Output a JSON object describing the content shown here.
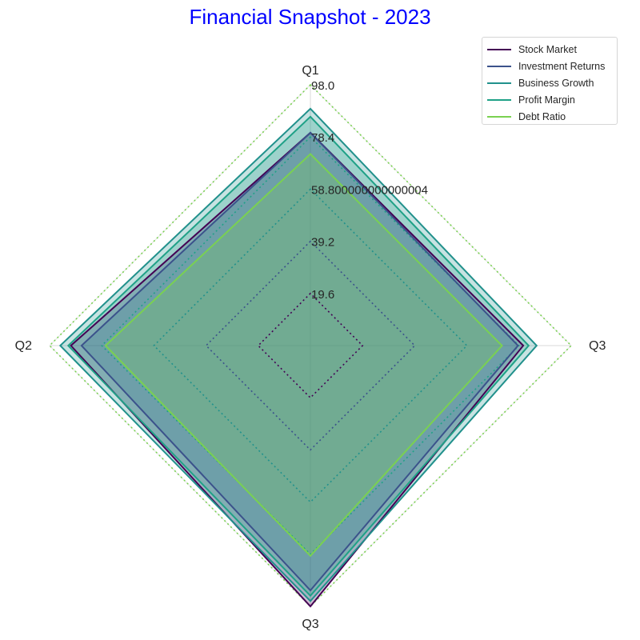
{
  "chart_data": {
    "type": "radar",
    "title": "Financial Snapshot - 2023",
    "title_color": "#0000ff",
    "axes": [
      "Q1",
      "Q2",
      "Q3",
      "Q3"
    ],
    "radial_ticks": [
      "19.6",
      "39.2",
      "58.800000000000004",
      "78.4",
      "98.0"
    ],
    "radial_tick_values": [
      19.6,
      39.2,
      58.8,
      78.4,
      98.0
    ],
    "rlim": [
      0,
      98
    ],
    "grid": true,
    "grid_style": "dotted",
    "legend_position": "top-right",
    "series": [
      {
        "name": "Stock Market",
        "values": [
          80,
          90,
          98,
          80
        ],
        "color": "#440154"
      },
      {
        "name": "Investment Returns",
        "values": [
          80,
          86,
          92,
          78
        ],
        "color": "#3b528b"
      },
      {
        "name": "Business Growth",
        "values": [
          89,
          94,
          96,
          85
        ],
        "color": "#21918c"
      },
      {
        "name": "Profit Margin",
        "values": [
          86,
          91,
          94,
          82
        ],
        "color": "#1fa187"
      },
      {
        "name": "Debt Ratio",
        "values": [
          72,
          77,
          79,
          72
        ],
        "color": "#7ad151"
      }
    ]
  }
}
